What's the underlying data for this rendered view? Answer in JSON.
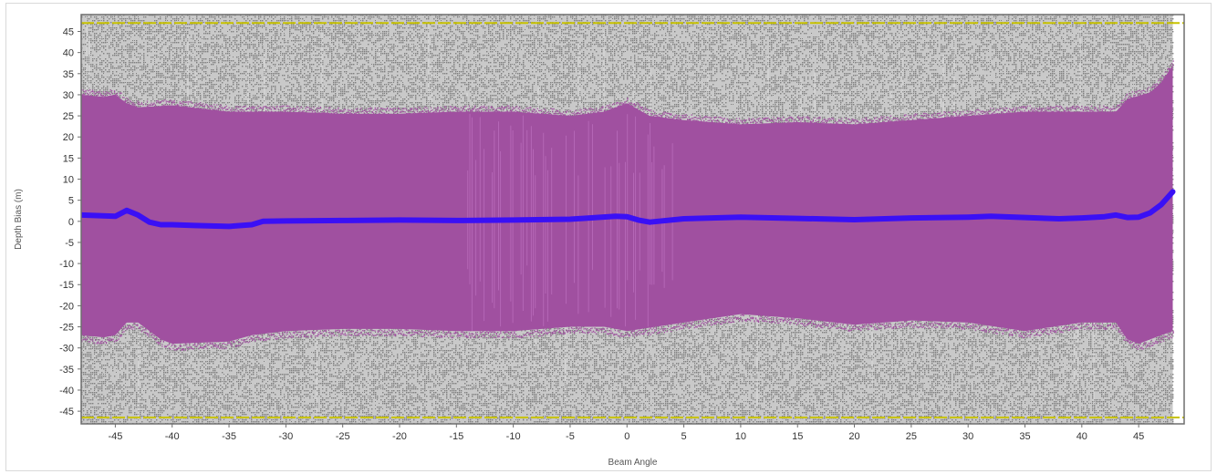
{
  "chart_data": {
    "type": "scatter",
    "xlabel": "Beam Angle",
    "ylabel": "Depth Bias (m)",
    "xlim": [
      -48,
      49
    ],
    "ylim": [
      -48,
      49
    ],
    "x_ticks": [
      -45,
      -40,
      -35,
      -30,
      -25,
      -20,
      -15,
      -10,
      -5,
      0,
      5,
      10,
      15,
      20,
      25,
      30,
      35,
      40,
      45
    ],
    "y_ticks": [
      45,
      40,
      35,
      30,
      25,
      20,
      15,
      10,
      5,
      0,
      -5,
      -10,
      -15,
      -20,
      -25,
      -30,
      -35,
      -40,
      -45
    ],
    "grid": false,
    "threshold_lines": [
      47,
      -46.5
    ],
    "series": [
      {
        "role": "all soundings",
        "color": "#7f7f7f",
        "x_range": [
          -48,
          48
        ],
        "y_range": [
          -48,
          48
        ]
      },
      {
        "role": "accepted soundings band",
        "color": "#a050a0",
        "upper": [
          [
            -48,
            30
          ],
          [
            -46,
            29.5
          ],
          [
            -45,
            30
          ],
          [
            -44,
            28
          ],
          [
            -43,
            27
          ],
          [
            -40,
            27.5
          ],
          [
            -35,
            26
          ],
          [
            -30,
            26
          ],
          [
            -25,
            25.5
          ],
          [
            -20,
            25.5
          ],
          [
            -15,
            26
          ],
          [
            -10,
            26
          ],
          [
            -5,
            25
          ],
          [
            -2,
            26
          ],
          [
            0,
            28
          ],
          [
            2,
            25
          ],
          [
            5,
            24
          ],
          [
            10,
            23
          ],
          [
            15,
            23.5
          ],
          [
            20,
            23
          ],
          [
            25,
            24
          ],
          [
            30,
            25
          ],
          [
            35,
            26
          ],
          [
            40,
            26
          ],
          [
            43,
            26
          ],
          [
            44,
            29
          ],
          [
            46,
            30.5
          ],
          [
            47,
            33
          ],
          [
            48,
            37
          ]
        ],
        "lower": [
          [
            -48,
            -27
          ],
          [
            -46,
            -27.5
          ],
          [
            -45,
            -27
          ],
          [
            -44,
            -24
          ],
          [
            -43,
            -24
          ],
          [
            -41,
            -28
          ],
          [
            -40,
            -29
          ],
          [
            -35,
            -28.5
          ],
          [
            -33,
            -27
          ],
          [
            -30,
            -26
          ],
          [
            -25,
            -25.5
          ],
          [
            -20,
            -25.5
          ],
          [
            -15,
            -26
          ],
          [
            -10,
            -26
          ],
          [
            -5,
            -25
          ],
          [
            -2,
            -25
          ],
          [
            0,
            -26
          ],
          [
            5,
            -24
          ],
          [
            10,
            -22
          ],
          [
            15,
            -23
          ],
          [
            20,
            -24.5
          ],
          [
            25,
            -23.5
          ],
          [
            30,
            -24
          ],
          [
            35,
            -26
          ],
          [
            40,
            -24
          ],
          [
            43,
            -24
          ],
          [
            44,
            -28
          ],
          [
            45,
            -29
          ],
          [
            46,
            -28
          ],
          [
            48,
            -26
          ]
        ]
      },
      {
        "role": "mean depth bias",
        "color": "#3a10f5",
        "x": [
          -48,
          -45,
          -44,
          -43,
          -42,
          -41,
          -40,
          -38,
          -35,
          -33,
          -32,
          -30,
          -25,
          -20,
          -15,
          -10,
          -5,
          -1,
          0,
          1,
          2,
          5,
          10,
          15,
          20,
          25,
          30,
          32,
          35,
          38,
          40,
          42,
          43,
          44,
          45,
          46,
          47,
          48
        ],
        "y": [
          1.5,
          1.2,
          2.6,
          1.5,
          -0.2,
          -0.8,
          -0.8,
          -1,
          -1.2,
          -0.8,
          0,
          0.1,
          0.2,
          0.3,
          0.2,
          0.3,
          0.5,
          1.2,
          1.1,
          0.3,
          -0.2,
          0.6,
          1,
          0.7,
          0.4,
          0.8,
          1,
          1.2,
          0.9,
          0.6,
          0.8,
          1.1,
          1.5,
          0.9,
          1,
          2,
          4,
          7
        ]
      }
    ]
  }
}
